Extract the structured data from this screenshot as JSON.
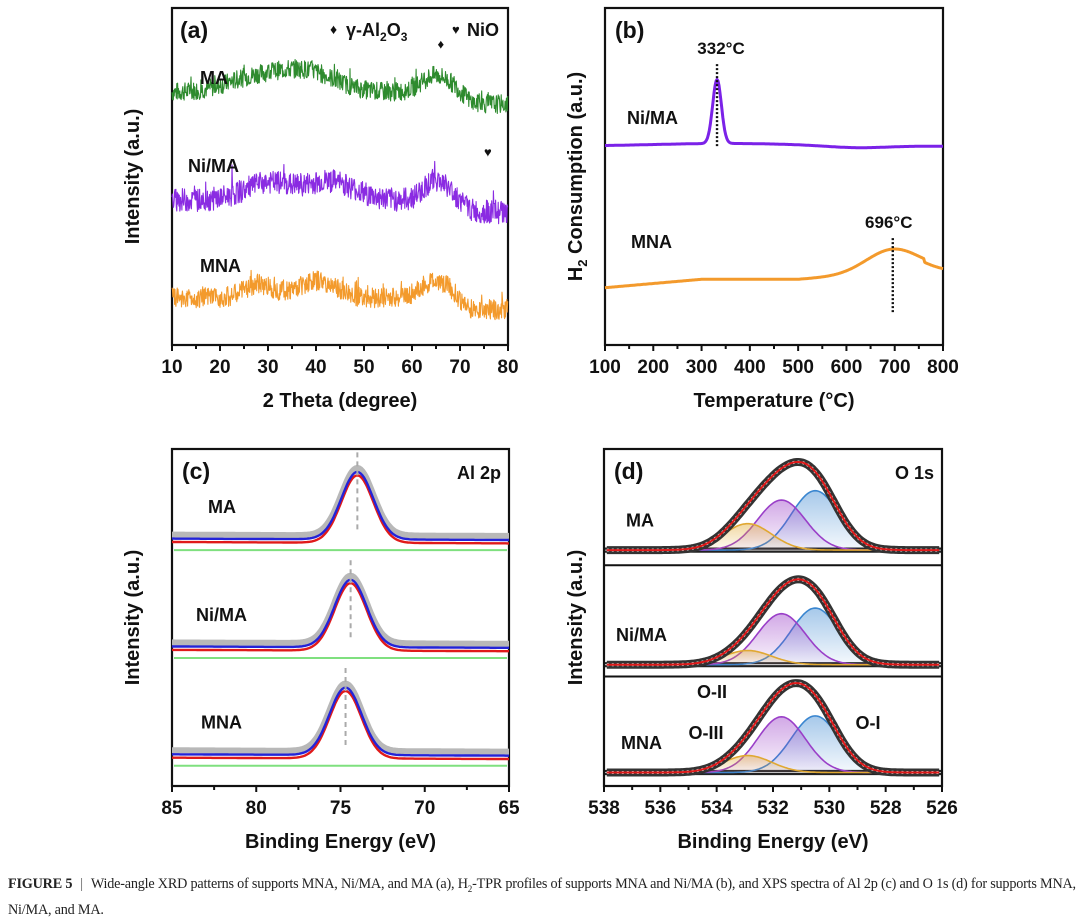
{
  "figure": {
    "caption_label": "FIGURE 5",
    "caption_separator": "|",
    "caption_part1": "Wide-angle XRD patterns of supports MNA, Ni/MA, and MA (a), H",
    "caption_sub": "2",
    "caption_part2": "-TPR profiles of supports MNA and Ni/MA (b), and XPS spectra of Al 2p (c) and O 1s (d) for supports MNA, Ni/MA, and MA."
  },
  "chart_data": [
    {
      "id": "a",
      "type": "line",
      "panel_label": "(a)",
      "title": "",
      "xlabel": "2 Theta (degree)",
      "ylabel": "Intensity (a.u.)",
      "xlim": [
        10,
        80
      ],
      "x_ticks": [
        "10",
        "20",
        "30",
        "40",
        "50",
        "60",
        "70",
        "80"
      ],
      "y_ticks": [],
      "grid": false,
      "legend": {
        "placement": "top-right",
        "entries": [
          {
            "symbol": "diamond",
            "text": "γ-Al",
            "sub": "2",
            "text2": "O",
            "sub2": "3"
          },
          {
            "symbol": "heart",
            "text": "NiO"
          }
        ]
      },
      "series": [
        {
          "name": "MA",
          "color": "#2e8b2e",
          "offset": 0.75,
          "humps": [
            [
              27,
              0.04,
              6
            ],
            [
              38,
              0.06,
              6
            ],
            [
              65,
              0.05,
              3
            ]
          ],
          "drop_after": 69,
          "noise": 0.028
        },
        {
          "name": "Ni/MA",
          "color": "#8a2be2",
          "offset": 0.43,
          "humps": [
            [
              30,
              0.05,
              5
            ],
            [
              43,
              0.055,
              5
            ],
            [
              65,
              0.06,
              2.5
            ]
          ],
          "drop_after": 69,
          "noise": 0.035
        },
        {
          "name": "MNA",
          "color": "#f39a2c",
          "offset": 0.14,
          "humps": [
            [
              28,
              0.04,
              3
            ],
            [
              40,
              0.05,
              4
            ],
            [
              65,
              0.05,
              3
            ]
          ],
          "drop_after": 68,
          "noise": 0.03
        }
      ],
      "annotations": [
        {
          "symbol": "diamond",
          "x": 66,
          "series": "MA"
        },
        {
          "symbol": "heart",
          "x": 75.8,
          "series": "Ni/MA"
        }
      ]
    },
    {
      "id": "b",
      "type": "line",
      "panel_label": "(b)",
      "xlabel": "Temperature (°C)",
      "ylabel_main": "H",
      "ylabel_sub": "2",
      "ylabel_rest": " Consumption (a.u.)",
      "xlim": [
        100,
        800
      ],
      "x_ticks": [
        "100",
        "200",
        "300",
        "400",
        "500",
        "600",
        "700",
        "800"
      ],
      "grid": false,
      "series": [
        {
          "name": "Ni/MA",
          "color": "#7b22e8",
          "baseline": 0.59,
          "peak_temp": 332,
          "peak_height": 0.19,
          "peak_width": 9,
          "peak_label": "332°C"
        },
        {
          "name": "MNA",
          "color": "#f39a2c",
          "baseline": 0.17,
          "peak_temp": 696,
          "peak_height": 0.07,
          "peak_width": 55,
          "peak_label": "696°C"
        }
      ]
    },
    {
      "id": "c",
      "type": "line",
      "panel_label": "(c)",
      "corner_label": "Al 2p",
      "xlabel": "Binding Energy (eV)",
      "ylabel": "Intensity (a.u.)",
      "xlim": [
        85,
        65
      ],
      "x_ticks": [
        "85",
        "80",
        "75",
        "70",
        "65"
      ],
      "grid": false,
      "series_colors": {
        "raw": "#b8b8b8",
        "fit": "#2323d8",
        "envelope": "#e01a1a",
        "background": "#7fe07f"
      },
      "samples": [
        {
          "name": "MA",
          "peak_eV": 74.0,
          "offset": 0.72
        },
        {
          "name": "Ni/MA",
          "peak_eV": 74.4,
          "offset": 0.4
        },
        {
          "name": "MNA",
          "peak_eV": 74.7,
          "offset": 0.08
        }
      ]
    },
    {
      "id": "d",
      "type": "line",
      "panel_label": "(d)",
      "corner_label": "O 1s",
      "xlabel": "Binding Energy (eV)",
      "ylabel": "Intensity (a.u.)",
      "xlim": [
        538,
        526
      ],
      "x_ticks": [
        "538",
        "536",
        "534",
        "532",
        "530",
        "528",
        "526"
      ],
      "grid": false,
      "component_labels": [
        {
          "text": "O-I",
          "eV": 529.5
        },
        {
          "text": "O-II",
          "eV": 533.6
        },
        {
          "text": "O-III",
          "eV": 534.2
        }
      ],
      "components": [
        {
          "name": "O-I",
          "center_eV": 530.5,
          "color": "#3a86d0"
        },
        {
          "name": "O-II",
          "center_eV": 531.7,
          "color": "#9a3fc8"
        },
        {
          "name": "O-III",
          "center_eV": 532.9,
          "color": "#e0a832"
        }
      ],
      "samples": [
        {
          "name": "MA",
          "amplitudes": [
            0.63,
            0.53,
            0.28
          ],
          "offset": 0.7
        },
        {
          "name": "Ni/MA",
          "amplitudes": [
            0.6,
            0.54,
            0.15
          ],
          "offset": 0.36
        },
        {
          "name": "MNA",
          "amplitudes": [
            0.6,
            0.59,
            0.18
          ],
          "offset": 0.04
        }
      ]
    }
  ]
}
